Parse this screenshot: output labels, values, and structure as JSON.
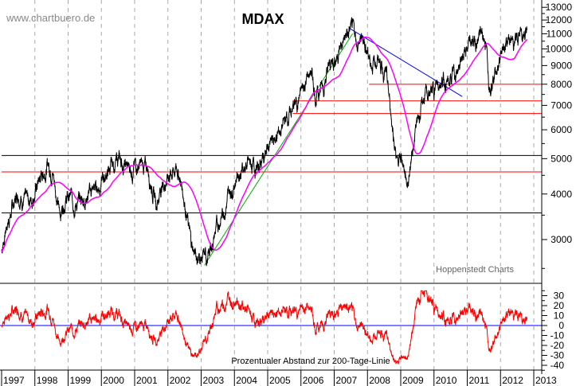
{
  "chart_data": {
    "type": "line",
    "title": "MDAX",
    "watermark": "www.chartbuero.de",
    "source": "Hoppenstedt Charts",
    "y_scale": "log",
    "ylim": [
      2400,
      13200
    ],
    "y_ticks": [
      3000,
      4000,
      5000,
      6000,
      7000,
      8000,
      9000,
      10000,
      11000,
      12000,
      13000
    ],
    "x_ticks": [
      "1997",
      "1998",
      "1999",
      "2000",
      "2001",
      "2002",
      "2003",
      "2004",
      "2005",
      "2006",
      "2007",
      "2008",
      "2009",
      "2010",
      "2011",
      "2012",
      "2013"
    ],
    "xlim": [
      1997,
      2013.25
    ],
    "series": [
      {
        "name": "MDAX",
        "color": "#000000",
        "points": [
          [
            1997.0,
            2800
          ],
          [
            1997.15,
            3300
          ],
          [
            1997.35,
            3700
          ],
          [
            1997.5,
            4100
          ],
          [
            1997.7,
            3800
          ],
          [
            1997.9,
            3900
          ],
          [
            1998.15,
            4400
          ],
          [
            1998.4,
            4850
          ],
          [
            1998.55,
            4600
          ],
          [
            1998.75,
            3500
          ],
          [
            1998.9,
            3900
          ],
          [
            1999.1,
            3900
          ],
          [
            1999.3,
            3750
          ],
          [
            1999.6,
            4000
          ],
          [
            1999.9,
            4200
          ],
          [
            2000.2,
            4600
          ],
          [
            2000.5,
            4950
          ],
          [
            2000.8,
            4700
          ],
          [
            2001.1,
            4800
          ],
          [
            2001.4,
            4700
          ],
          [
            2001.65,
            3800
          ],
          [
            2001.8,
            4200
          ],
          [
            2002.1,
            4600
          ],
          [
            2002.3,
            4700
          ],
          [
            2002.5,
            3900
          ],
          [
            2002.7,
            2900
          ],
          [
            2002.85,
            2700
          ],
          [
            2003.2,
            2650
          ],
          [
            2003.45,
            3200
          ],
          [
            2003.8,
            3900
          ],
          [
            2004.1,
            4600
          ],
          [
            2004.4,
            4800
          ],
          [
            2004.7,
            4700
          ],
          [
            2004.95,
            5200
          ],
          [
            2005.3,
            5800
          ],
          [
            2005.55,
            6400
          ],
          [
            2005.9,
            7200
          ],
          [
            2006.3,
            8700
          ],
          [
            2006.45,
            7400
          ],
          [
            2006.7,
            8200
          ],
          [
            2006.95,
            9300
          ],
          [
            2007.3,
            10500
          ],
          [
            2007.5,
            11300
          ],
          [
            2007.7,
            10400
          ],
          [
            2007.9,
            10600
          ],
          [
            2008.1,
            9200
          ],
          [
            2008.35,
            9400
          ],
          [
            2008.55,
            8500
          ],
          [
            2008.75,
            6200
          ],
          [
            2008.9,
            4800
          ],
          [
            2009.05,
            5000
          ],
          [
            2009.2,
            4300
          ],
          [
            2009.45,
            6000
          ],
          [
            2009.7,
            7300
          ],
          [
            2009.95,
            7600
          ],
          [
            2010.2,
            8300
          ],
          [
            2010.45,
            8000
          ],
          [
            2010.7,
            8800
          ],
          [
            2010.95,
            9900
          ],
          [
            2011.2,
            10400
          ],
          [
            2011.45,
            11000
          ],
          [
            2011.55,
            10600
          ],
          [
            2011.65,
            8300
          ],
          [
            2011.8,
            8600
          ],
          [
            2012.0,
            9300
          ],
          [
            2012.2,
            10700
          ],
          [
            2012.4,
            10400
          ],
          [
            2012.6,
            11000
          ],
          [
            2012.8,
            11600
          ]
        ]
      },
      {
        "name": "200-Tage-Linie",
        "color": "#ff00ff"
      }
    ],
    "lines": [
      {
        "type": "support",
        "value": 8000,
        "color": "#ff0000",
        "from": 2008.05
      },
      {
        "type": "support",
        "value": 7200,
        "color": "#ff0000",
        "from": 2005.75
      },
      {
        "type": "support",
        "value": 6650,
        "color": "#ff0000",
        "from": 2005.75
      },
      {
        "type": "support",
        "value": 5100,
        "color": "#000000",
        "from": 1997
      },
      {
        "type": "support",
        "value": 4600,
        "color": "#ff0000",
        "from": 1997
      },
      {
        "type": "support",
        "value": 3550,
        "color": "#000000",
        "from": 1997
      },
      {
        "type": "trend",
        "color": "#0000ff",
        "p1": [
          2007.45,
          11400
        ],
        "p2": [
          2010.85,
          7400
        ]
      },
      {
        "type": "trend",
        "color": "#00b000",
        "p1": [
          2003.1,
          2550
        ],
        "p2": [
          2007.55,
          11000
        ]
      }
    ],
    "oscillator": {
      "label": "Prozentualer Abstand zur 200-Tage-Linie",
      "ylim": [
        -45,
        35
      ],
      "y_ticks": [
        30,
        20,
        10,
        0,
        -10,
        -20,
        -30,
        -40
      ],
      "color": "#ff0000",
      "zero_color": "#0000ff"
    }
  }
}
